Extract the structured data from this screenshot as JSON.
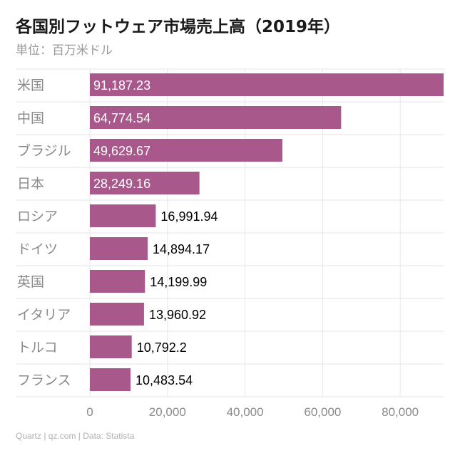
{
  "chart_data": {
    "type": "bar",
    "orientation": "horizontal",
    "title": "各国別フットウェア市場売上高（2019年）",
    "subtitle": "単位：百万米ドル",
    "categories": [
      "米国",
      "中国",
      "ブラジル",
      "日本",
      "ロシア",
      "ドイツ",
      "英国",
      "イタリア",
      "トルコ",
      "フランス"
    ],
    "values": [
      91187.23,
      64774.54,
      49629.67,
      28249.16,
      16991.94,
      14894.17,
      14199.99,
      13960.92,
      10792.2,
      10483.54
    ],
    "value_labels": [
      "91,187.23",
      "64,774.54",
      "49,629.67",
      "28,249.16",
      "16,991.94",
      "14,894.17",
      "14,199.99",
      "13,960.92",
      "10,792.2",
      "10,483.54"
    ],
    "xlim": [
      0,
      91187.23
    ],
    "xticks": [
      0,
      20000,
      40000,
      60000,
      80000
    ],
    "xtick_labels": [
      "0",
      "20,000",
      "40,000",
      "60,000",
      "80,000"
    ],
    "grid": true,
    "bar_color": "#a8588a",
    "label_inside_color": "#ffffff",
    "label_outside_color": "#000000",
    "grid_color": "#e6e6e6",
    "category_color": "#8a8a8a",
    "tick_color": "#8a8a8a"
  },
  "footer": "Quartz | qz.com | Data: Statista"
}
